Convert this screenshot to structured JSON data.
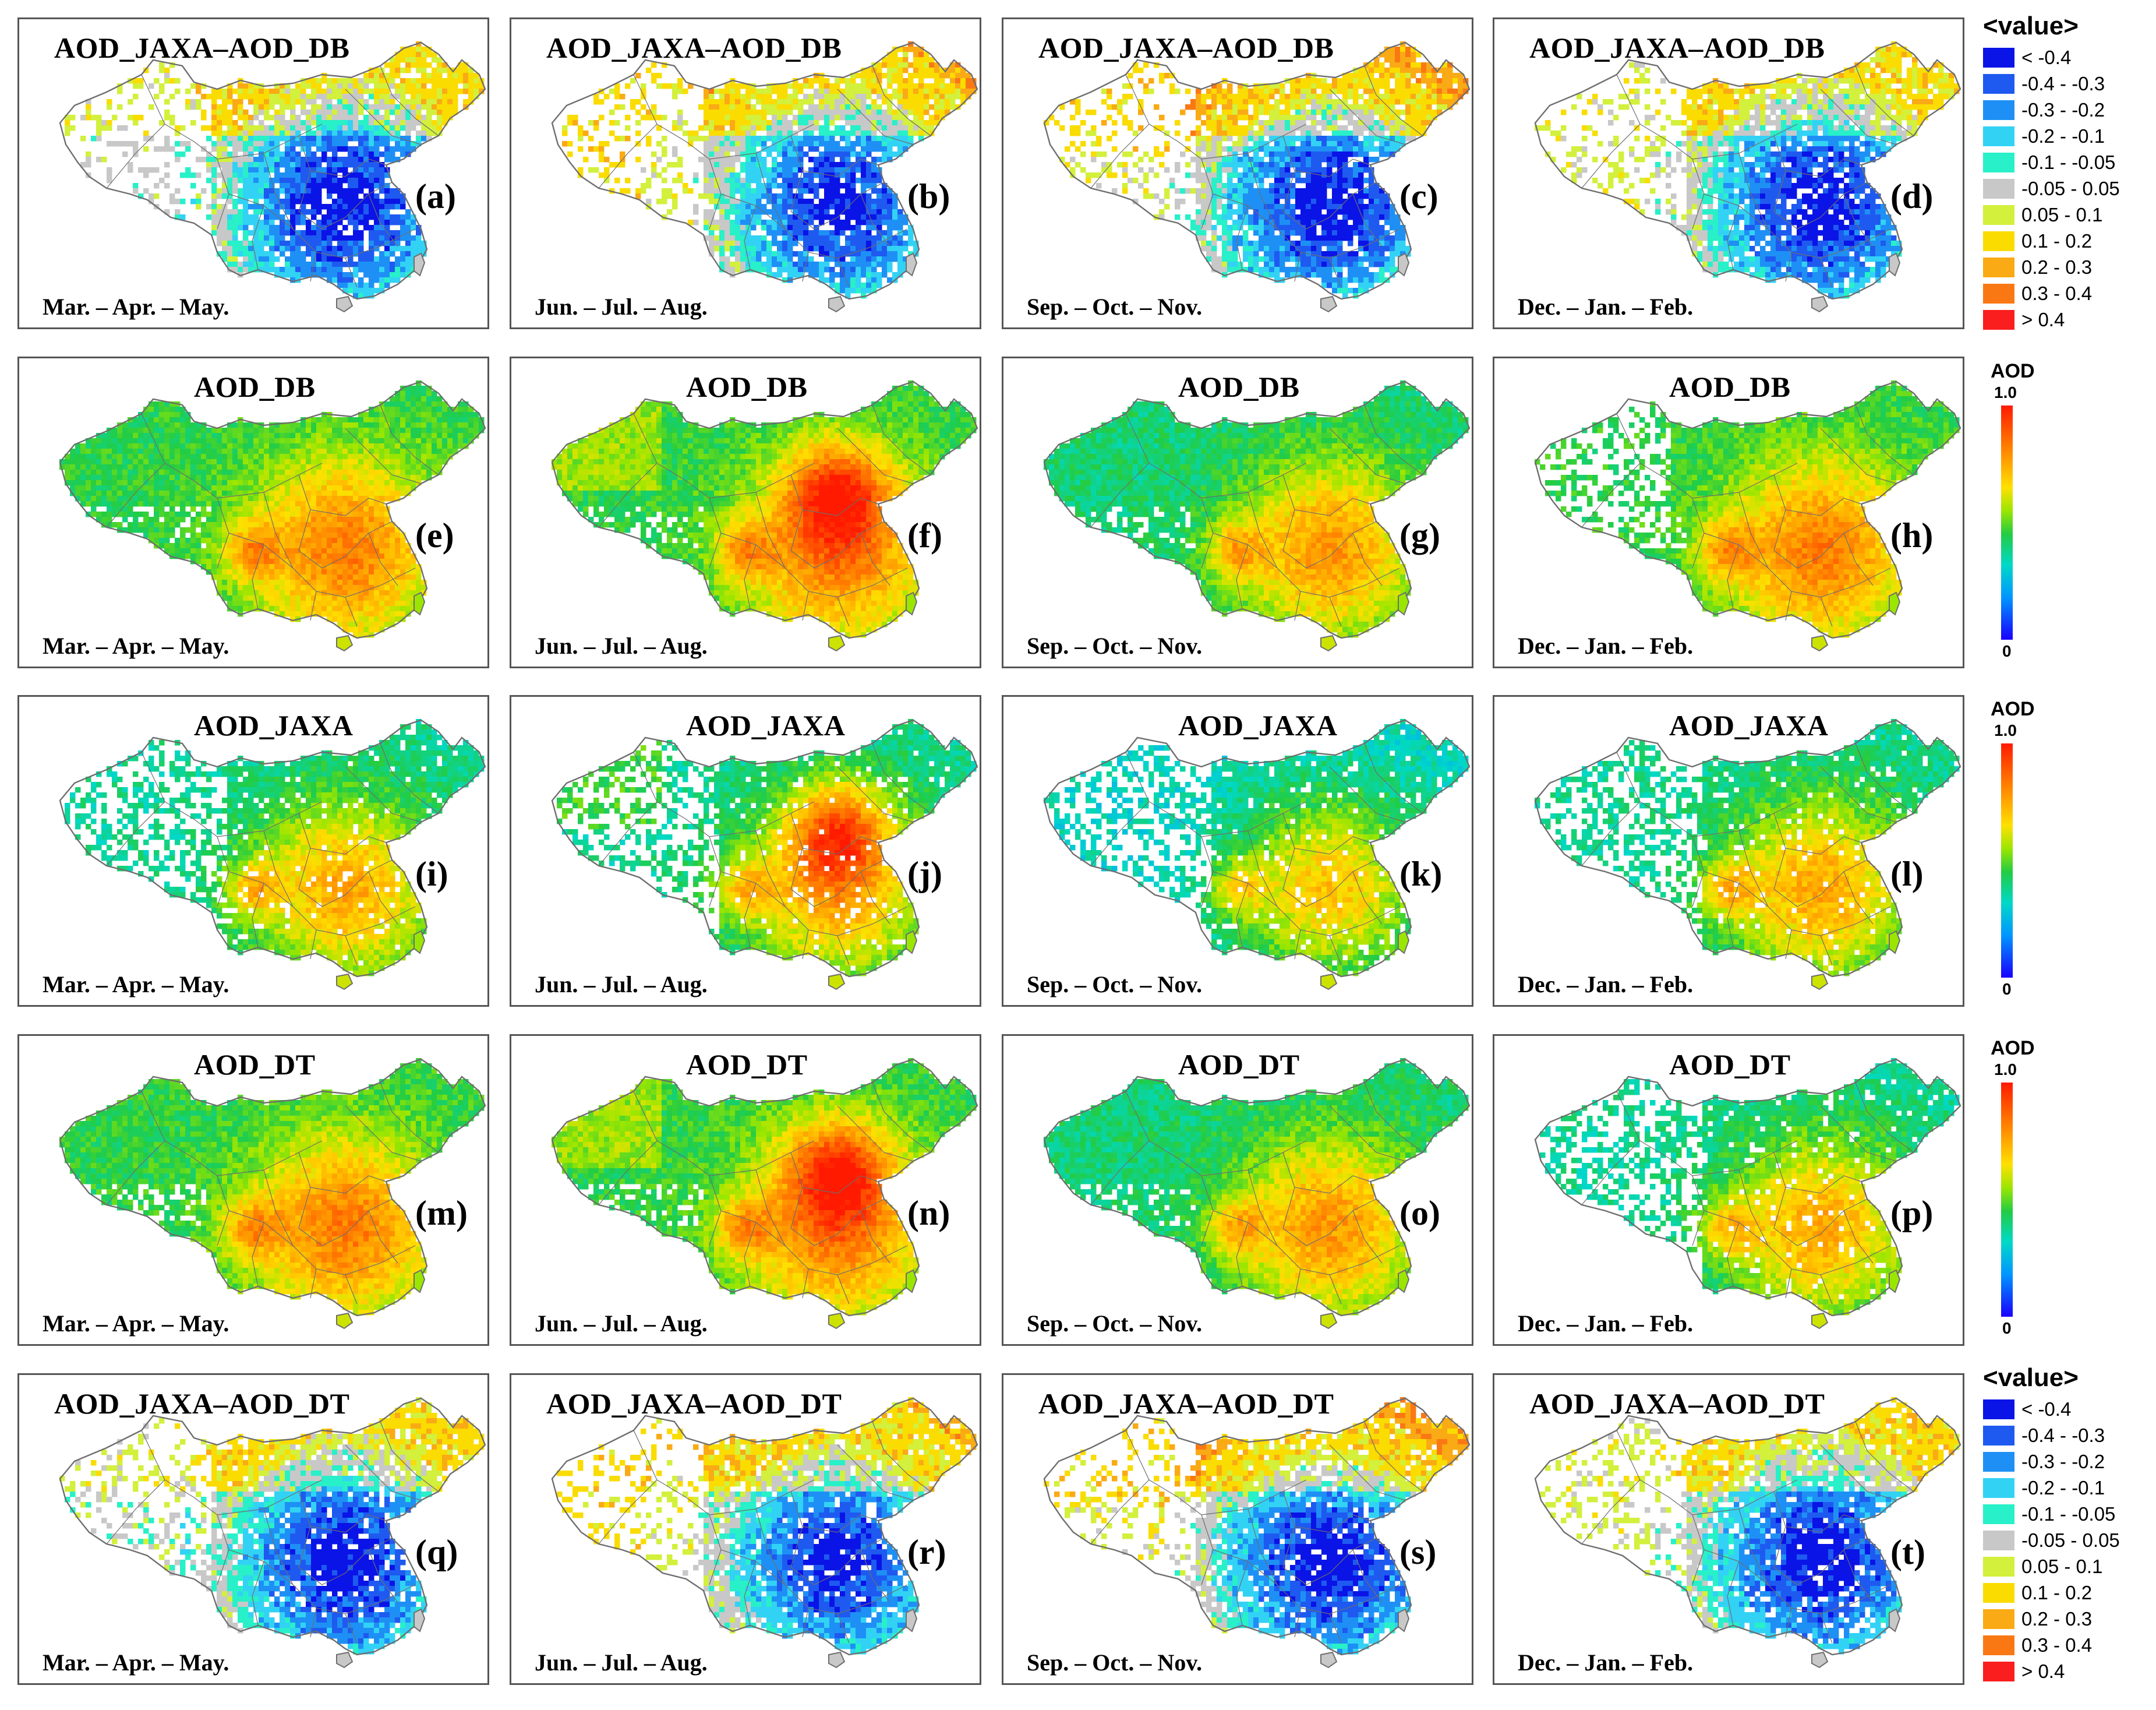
{
  "rows": [
    {
      "panels": [
        {
          "title": "AOD_JAXA–AOD_DB",
          "letter": "(a)",
          "season": "Mar. – Apr. – May.",
          "mode": "diff",
          "variant": 0
        },
        {
          "title": "AOD_JAXA–AOD_DB",
          "letter": "(b)",
          "season": "Jun. – Jul. – Aug.",
          "mode": "diff",
          "variant": 1
        },
        {
          "title": "AOD_JAXA–AOD_DB",
          "letter": "(c)",
          "season": "Sep. – Oct. – Nov.",
          "mode": "diff",
          "variant": 2
        },
        {
          "title": "AOD_JAXA–AOD_DB",
          "letter": "(d)",
          "season": "Dec. – Jan. – Feb.",
          "mode": "diff",
          "variant": 3
        }
      ]
    },
    {
      "panels": [
        {
          "title": "AOD_DB",
          "letter": "(e)",
          "season": "Mar. – Apr. – May.",
          "mode": "aod",
          "variant": 0
        },
        {
          "title": "AOD_DB",
          "letter": "(f)",
          "season": "Jun. – Jul. – Aug.",
          "mode": "aod",
          "variant": 1
        },
        {
          "title": "AOD_DB",
          "letter": "(g)",
          "season": "Sep. – Oct. – Nov.",
          "mode": "aod",
          "variant": 2
        },
        {
          "title": "AOD_DB",
          "letter": "(h)",
          "season": "Dec. – Jan. – Feb.",
          "mode": "aod",
          "variant": 3
        }
      ]
    },
    {
      "panels": [
        {
          "title": "AOD_JAXA",
          "letter": "(i)",
          "season": "Mar. – Apr. – May.",
          "mode": "aodsparse",
          "variant": 0
        },
        {
          "title": "AOD_JAXA",
          "letter": "(j)",
          "season": "Jun. – Jul. – Aug.",
          "mode": "aodsparse",
          "variant": 1
        },
        {
          "title": "AOD_JAXA",
          "letter": "(k)",
          "season": "Sep. – Oct. – Nov.",
          "mode": "aodsparse",
          "variant": 2
        },
        {
          "title": "AOD_JAXA",
          "letter": "(l)",
          "season": "Dec. – Jan. – Feb.",
          "mode": "aodsparse",
          "variant": 3
        }
      ]
    },
    {
      "panels": [
        {
          "title": "AOD_DT",
          "letter": "(m)",
          "season": "Mar. – Apr. – May.",
          "mode": "aod",
          "variant": 0
        },
        {
          "title": "AOD_DT",
          "letter": "(n)",
          "season": "Jun. – Jul. – Aug.",
          "mode": "aod",
          "variant": 1
        },
        {
          "title": "AOD_DT",
          "letter": "(o)",
          "season": "Sep. – Oct. – Nov.",
          "mode": "aod",
          "variant": 2
        },
        {
          "title": "AOD_DT",
          "letter": "(p)",
          "season": "Dec. – Jan. – Feb.",
          "mode": "aodsparse",
          "variant": 3
        }
      ]
    },
    {
      "panels": [
        {
          "title": "AOD_JAXA–AOD_DT",
          "letter": "(q)",
          "season": "Mar. – Apr. – May.",
          "mode": "diff",
          "variant": 0
        },
        {
          "title": "AOD_JAXA–AOD_DT",
          "letter": "(r)",
          "season": "Jun. – Jul. – Aug.",
          "mode": "diff",
          "variant": 1
        },
        {
          "title": "AOD_JAXA–AOD_DT",
          "letter": "(s)",
          "season": "Sep. – Oct. – Nov.",
          "mode": "diff",
          "variant": 2
        },
        {
          "title": "AOD_JAXA–AOD_DT",
          "letter": "(t)",
          "season": "Dec. – Jan. – Feb.",
          "mode": "diff",
          "variant": 3
        }
      ]
    }
  ],
  "diff_legend": {
    "header": "<value>",
    "items": [
      {
        "label": "< -0.4",
        "color": "#0a14e6"
      },
      {
        "label": "-0.4 - -0.3",
        "color": "#1e5af0"
      },
      {
        "label": "-0.3 - -0.2",
        "color": "#1e90f5"
      },
      {
        "label": "-0.2 - -0.1",
        "color": "#32d2f5"
      },
      {
        "label": "-0.1 - -0.05",
        "color": "#28f0c8"
      },
      {
        "label": "-0.05 - 0.05",
        "color": "#c8c8c8"
      },
      {
        "label": "0.05 - 0.1",
        "color": "#d2f03c"
      },
      {
        "label": "0.1 - 0.2",
        "color": "#fadc00"
      },
      {
        "label": "0.2 - 0.3",
        "color": "#faaa14"
      },
      {
        "label": "0.3 - 0.4",
        "color": "#fa7814"
      },
      {
        "label": "> 0.4",
        "color": "#fa1e1e"
      }
    ]
  },
  "aod_colorbar": {
    "title": "AOD",
    "max": "1.0",
    "min": "0"
  }
}
